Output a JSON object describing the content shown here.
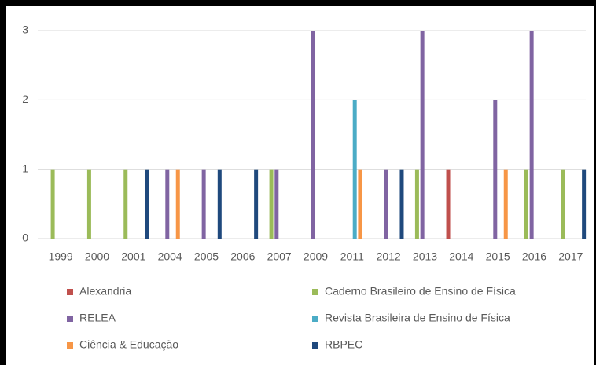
{
  "chart_data": {
    "type": "bar",
    "categories": [
      "1999",
      "2000",
      "2001",
      "2004",
      "2005",
      "2006",
      "2007",
      "2009",
      "2011",
      "2012",
      "2013",
      "2014",
      "2015",
      "2016",
      "2017"
    ],
    "series": [
      {
        "name": "Alexandria",
        "color": "#c0504d",
        "values": [
          0,
          0,
          0,
          0,
          0,
          0,
          0,
          0,
          0,
          0,
          0,
          1,
          0,
          0,
          0
        ]
      },
      {
        "name": "Caderno Brasileiro de Ensino de Física",
        "color": "#9bbb59",
        "values": [
          1,
          1,
          1,
          0,
          0,
          0,
          1,
          0,
          0,
          0,
          1,
          0,
          0,
          1,
          1
        ]
      },
      {
        "name": "RELEA",
        "color": "#8064a2",
        "values": [
          0,
          0,
          0,
          1,
          1,
          0,
          1,
          3,
          0,
          1,
          3,
          0,
          2,
          3,
          0
        ]
      },
      {
        "name": "Revista Brasileira de Ensino de Física",
        "color": "#4bacc6",
        "values": [
          0,
          0,
          0,
          0,
          0,
          0,
          0,
          0,
          2,
          0,
          0,
          0,
          0,
          0,
          0
        ]
      },
      {
        "name": "Ciência & Educação",
        "color": "#f79646",
        "values": [
          0,
          0,
          0,
          1,
          0,
          0,
          0,
          0,
          1,
          0,
          0,
          0,
          1,
          0,
          0
        ]
      },
      {
        "name": "RBPEC",
        "color": "#1f497d",
        "values": [
          0,
          0,
          1,
          0,
          1,
          1,
          0,
          0,
          0,
          1,
          0,
          0,
          0,
          0,
          1
        ]
      }
    ],
    "ylim": [
      0,
      3
    ],
    "yticks": [
      0,
      1,
      2,
      3
    ],
    "grid": true,
    "legend": "bottom"
  }
}
